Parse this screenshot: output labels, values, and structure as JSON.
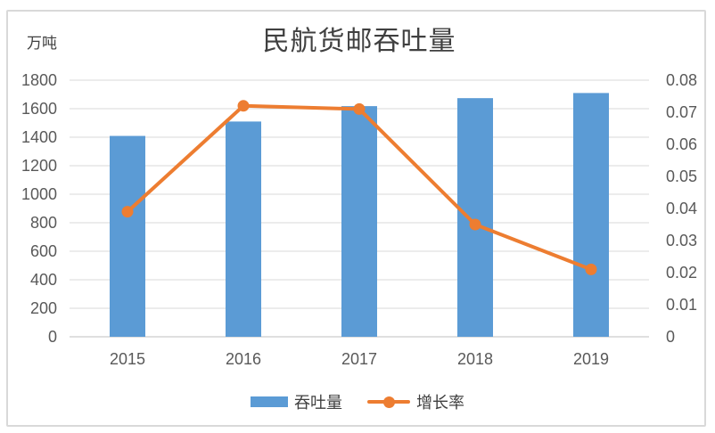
{
  "chart_data": {
    "type": "bar",
    "subtype": "bar-and-line-dual-axis",
    "title": "民航货邮吞吐量",
    "unit_label": "万吨",
    "categories": [
      "2015",
      "2016",
      "2017",
      "2018",
      "2019"
    ],
    "series": [
      {
        "name": "吞吐量",
        "type": "bar",
        "axis": "left",
        "color": "#5B9BD5",
        "values": [
          1409,
          1510,
          1618,
          1674,
          1710
        ]
      },
      {
        "name": "增长率",
        "type": "line",
        "axis": "right",
        "color": "#ED7D31",
        "values": [
          0.039,
          0.072,
          0.071,
          0.035,
          0.021
        ]
      }
    ],
    "left_axis": {
      "min": 0,
      "max": 1800,
      "step": 200,
      "tick_labels": [
        "0",
        "200",
        "400",
        "600",
        "800",
        "1000",
        "1200",
        "1400",
        "1600",
        "1800"
      ]
    },
    "right_axis": {
      "min": 0,
      "max": 0.08,
      "step": 0.01,
      "tick_labels": [
        "0",
        "0.01",
        "0.02",
        "0.03",
        "0.04",
        "0.05",
        "0.06",
        "0.07",
        "0.08"
      ]
    },
    "grid": "horizontal-only",
    "legend_position": "bottom",
    "colors": {
      "gridline": "#d9d9d9",
      "axis_line": "#bfbfbf",
      "tick_text": "#595959",
      "title_text": "#404040",
      "frame_border": "#d9d9d9",
      "background": "#ffffff"
    }
  },
  "legend": {
    "items": [
      {
        "label": "吞吐量",
        "swatch": "bar-rectangle"
      },
      {
        "label": "增长率",
        "swatch": "line-with-marker"
      }
    ]
  }
}
